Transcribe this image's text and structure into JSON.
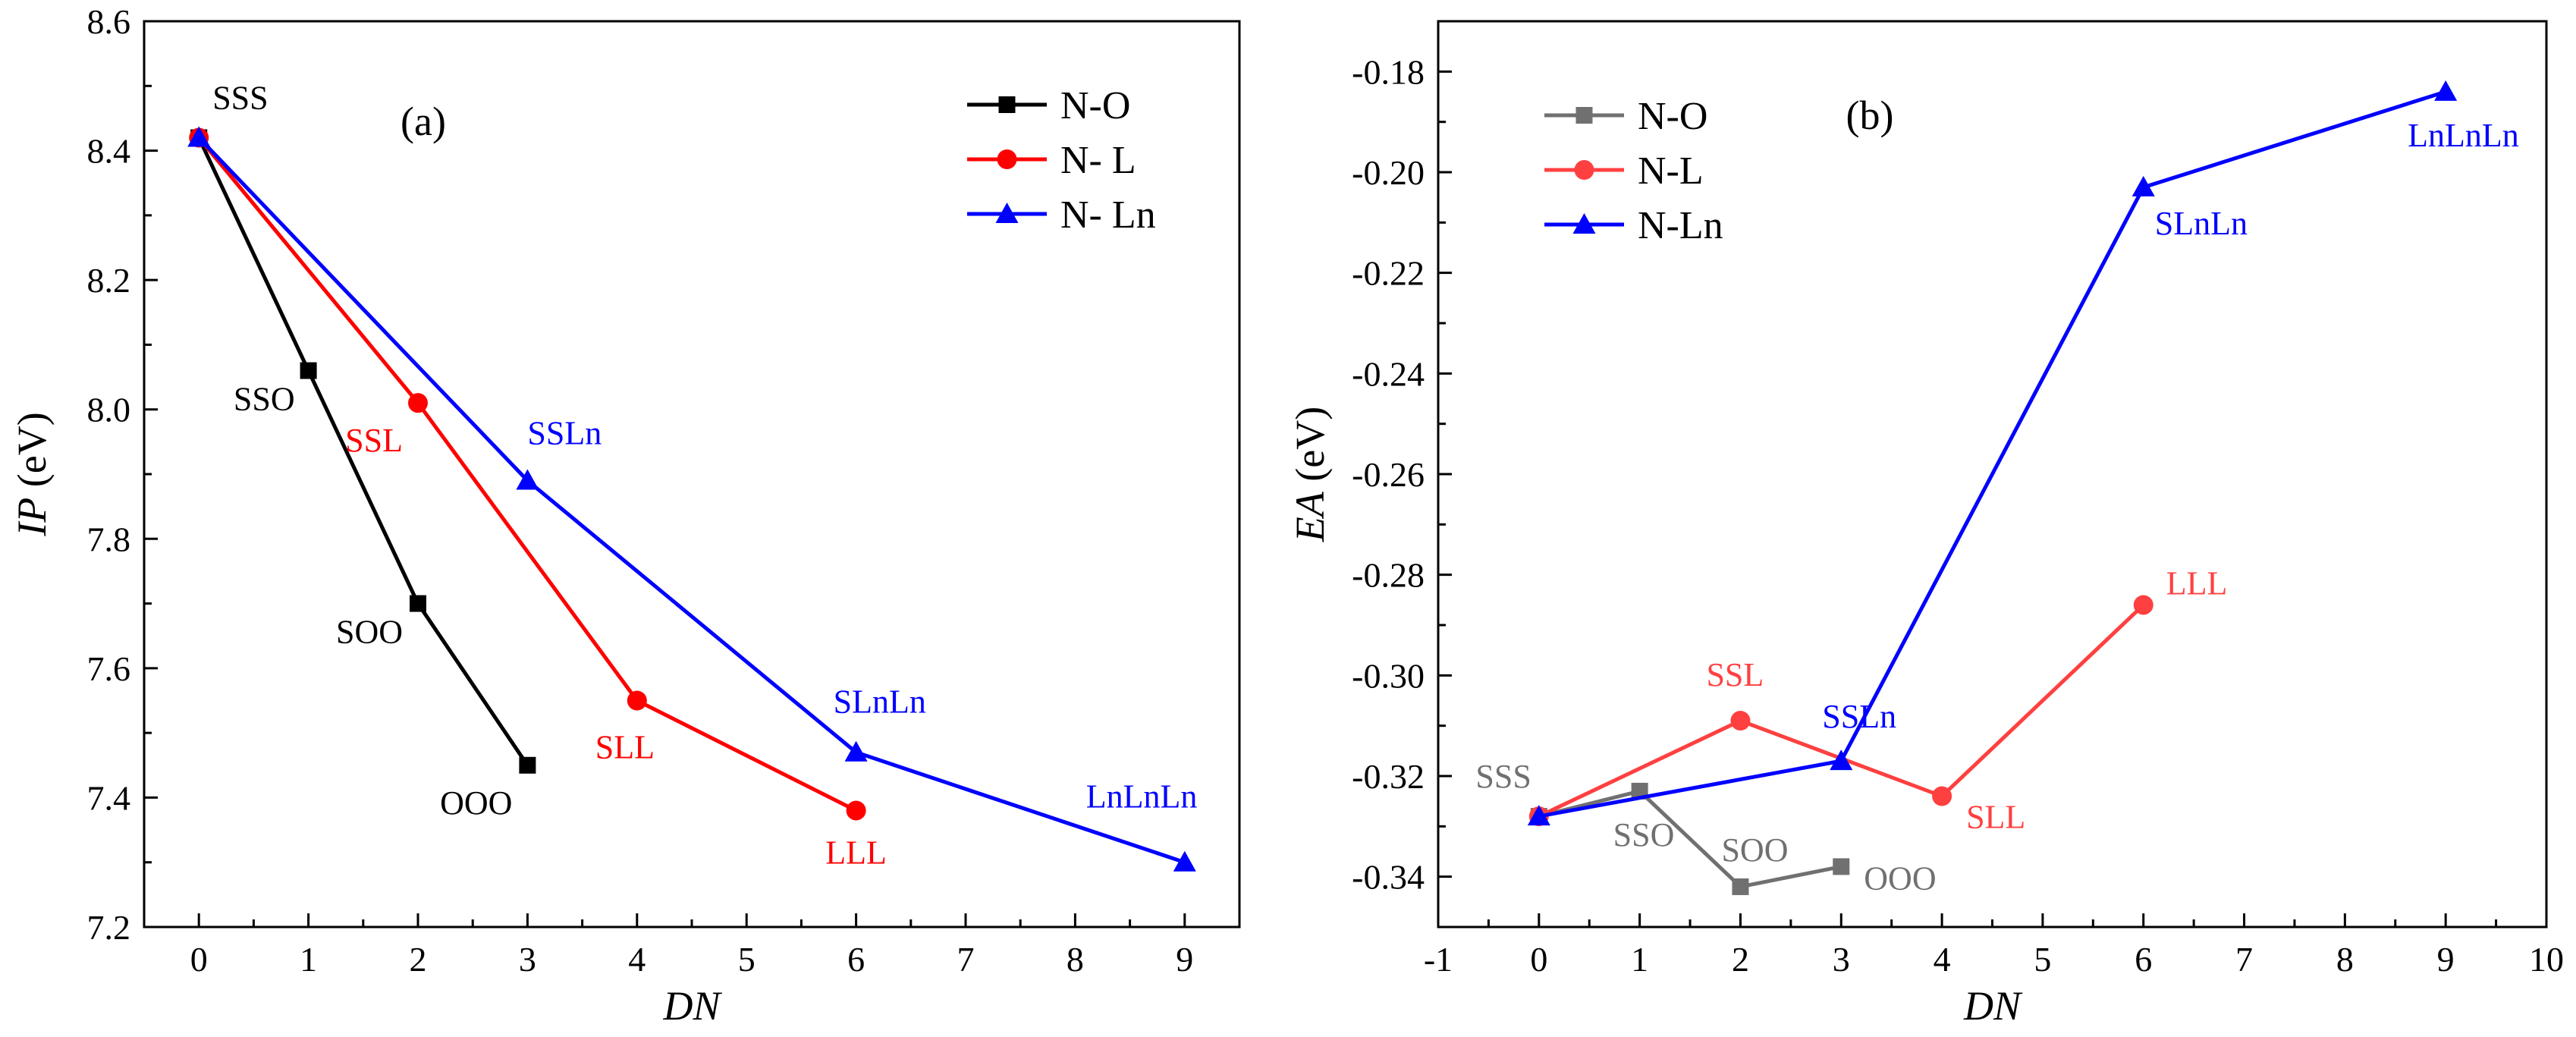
{
  "chart_data": [
    {
      "type": "line",
      "panel_label": "(a)",
      "xlabel": "DN",
      "ylabel_var": "IP",
      "ylabel_unit": " (eV)",
      "xlim": [
        -0.5,
        9.5
      ],
      "ylim": [
        7.2,
        8.6
      ],
      "xticks": [
        0,
        1,
        2,
        3,
        4,
        5,
        6,
        7,
        8,
        9
      ],
      "yticks": [
        7.2,
        7.4,
        7.6,
        7.8,
        8.0,
        8.2,
        8.4,
        8.6
      ],
      "ytick_decimals": 1,
      "legend_position": "top-right",
      "series": [
        {
          "name": "N-O",
          "legend_label": "N-O",
          "color": "#000000",
          "marker": "square",
          "x": [
            0,
            1,
            2,
            3
          ],
          "y": [
            8.42,
            8.06,
            7.7,
            7.45
          ],
          "labels": [
            "SSS",
            "SSO",
            "SOO",
            "OOO"
          ]
        },
        {
          "name": "N-L",
          "legend_label": "N- L",
          "color": "#ff0000",
          "marker": "circle",
          "x": [
            0,
            2,
            4,
            6
          ],
          "y": [
            8.42,
            8.01,
            7.55,
            7.38
          ],
          "labels": [
            "",
            "SSL",
            "SLL",
            "LLL"
          ]
        },
        {
          "name": "N-Ln",
          "legend_label": "N- Ln",
          "color": "#0000ff",
          "marker": "triangle",
          "x": [
            0,
            3,
            6,
            9
          ],
          "y": [
            8.42,
            7.89,
            7.47,
            7.3
          ],
          "labels": [
            "",
            "SSLn",
            "SLnLn",
            "LnLnLn"
          ]
        }
      ]
    },
    {
      "type": "line",
      "panel_label": "(b)",
      "xlabel": "DN",
      "ylabel_var": "EA",
      "ylabel_unit": " (eV)",
      "xlim": [
        -1,
        10
      ],
      "ylim": [
        -0.35,
        -0.17
      ],
      "xticks": [
        -1,
        0,
        1,
        2,
        3,
        4,
        5,
        6,
        7,
        8,
        9,
        10
      ],
      "yticks": [
        -0.34,
        -0.32,
        -0.3,
        -0.28,
        -0.26,
        -0.24,
        -0.22,
        -0.2,
        -0.18
      ],
      "ytick_decimals": 2,
      "legend_position": "top-left",
      "series": [
        {
          "name": "N-O",
          "legend_label": "N-O",
          "color": "#707070",
          "marker": "square",
          "x": [
            0,
            1,
            2,
            3
          ],
          "y": [
            -0.328,
            -0.323,
            -0.342,
            -0.338
          ],
          "labels": [
            "SSS",
            "SSO",
            "SOO",
            "OOO"
          ]
        },
        {
          "name": "N-L",
          "legend_label": "N-L",
          "color": "#ff4040",
          "marker": "circle",
          "x": [
            0,
            2,
            4,
            6
          ],
          "y": [
            -0.328,
            -0.309,
            -0.324,
            -0.286
          ],
          "labels": [
            "",
            "SSL",
            "SLL",
            "LLL"
          ]
        },
        {
          "name": "N-Ln",
          "legend_label": "N-Ln",
          "color": "#0000ff",
          "marker": "triangle",
          "x": [
            0,
            3,
            6,
            9
          ],
          "y": [
            -0.328,
            -0.317,
            -0.203,
            -0.184
          ],
          "labels": [
            "",
            "SSLn",
            "SLnLn",
            "LnLnLn"
          ]
        }
      ]
    }
  ]
}
